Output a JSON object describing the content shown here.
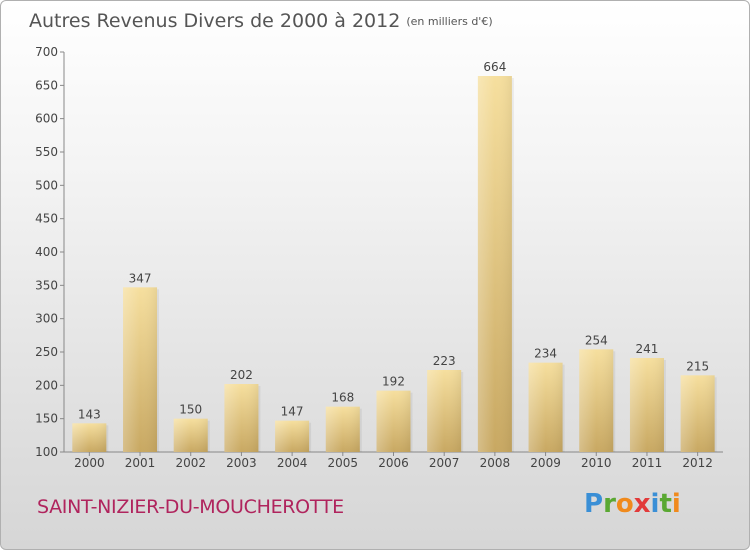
{
  "chart_data": {
    "type": "bar",
    "title": "Autres Revenus Divers de 2000 à 2012",
    "subtitle": "(en milliers d'€)",
    "categories": [
      "2000",
      "2001",
      "2002",
      "2003",
      "2004",
      "2005",
      "2006",
      "2007",
      "2008",
      "2009",
      "2010",
      "2011",
      "2012"
    ],
    "values": [
      143,
      347,
      150,
      202,
      147,
      168,
      192,
      223,
      664,
      234,
      254,
      241,
      215
    ],
    "ylim": [
      100,
      700
    ],
    "yticks": [
      100,
      150,
      200,
      250,
      300,
      350,
      400,
      450,
      500,
      550,
      600,
      650,
      700
    ],
    "grid": false,
    "bar_color": "#e8cc7e",
    "xlabel": "",
    "ylabel": ""
  },
  "location": "SAINT-NIZIER-DU-MOUCHEROTTE",
  "brand": {
    "name": "Proxiti",
    "letters": [
      "P",
      "r",
      "o",
      "x",
      "i",
      "t",
      "i"
    ],
    "colors": [
      "#3a8fd6",
      "#5aa832",
      "#f08a1c",
      "#e23a3a",
      "#3a8fd6",
      "#5aa832",
      "#f08a1c"
    ]
  }
}
